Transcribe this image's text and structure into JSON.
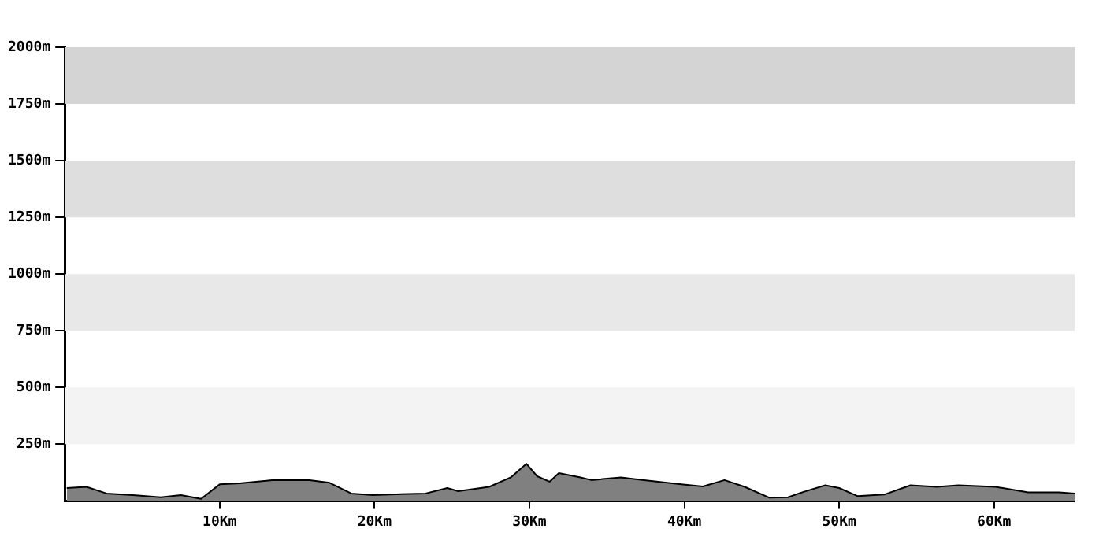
{
  "chart_data": {
    "type": "area",
    "x": [
      0.13,
      1.4,
      2.7,
      4.4,
      6.2,
      7.5,
      8.8,
      10.0,
      11.3,
      13.4,
      15.8,
      17.1,
      18.5,
      19.9,
      23.3,
      24.7,
      25.4,
      27.4,
      28.8,
      29.8,
      30.5,
      31.3,
      31.9,
      33.3,
      34.0,
      35.9,
      37.4,
      39.8,
      41.2,
      42.6,
      43.9,
      45.5,
      46.7,
      47.7,
      49.1,
      50.0,
      51.2,
      52.9,
      54.6,
      56.3,
      57.7,
      60.1,
      62.2,
      64.2,
      65.2
    ],
    "series": [
      {
        "color": "#808080",
        "values": [
          57,
          62,
          33,
          26,
          16,
          26,
          9,
          73,
          78,
          92,
          92,
          80,
          33,
          26,
          33,
          57,
          43,
          62,
          104,
          164,
          109,
          85,
          123,
          104,
          92,
          104,
          92,
          73,
          64,
          92,
          62,
          14,
          16,
          40,
          69,
          57,
          21,
          28,
          69,
          62,
          69,
          62,
          38,
          38,
          33
        ]
      }
    ],
    "xlim": [
      0,
      65.2
    ],
    "xticks": [
      {
        "value": 10,
        "label": "10Km"
      },
      {
        "value": 20,
        "label": "20Km"
      },
      {
        "value": 30,
        "label": "30Km"
      },
      {
        "value": 40,
        "label": "40Km"
      },
      {
        "value": 50,
        "label": "50Km"
      },
      {
        "value": 60,
        "label": "60Km"
      }
    ],
    "ylim": [
      0,
      2000
    ],
    "yticks": [
      {
        "value": 250,
        "label": "250m"
      },
      {
        "value": 500,
        "label": "500m"
      },
      {
        "value": 750,
        "label": "750m"
      },
      {
        "value": 1000,
        "label": "1000m"
      },
      {
        "value": 1250,
        "label": "1250m"
      },
      {
        "value": 1500,
        "label": "1500m"
      },
      {
        "value": 1750,
        "label": "1750m"
      },
      {
        "value": 2000,
        "label": "2000m"
      }
    ],
    "bands": [
      {
        "axis": "y",
        "from": 250,
        "to": 500,
        "color": "#f3f3f3"
      },
      {
        "axis": "y",
        "from": 750,
        "to": 1000,
        "color": "#e8e8e8"
      },
      {
        "axis": "y",
        "from": 1250,
        "to": 1500,
        "color": "#dedede"
      },
      {
        "axis": "y",
        "from": 1750,
        "to": 2000,
        "color": "#d4d4d4"
      }
    ],
    "grid": false,
    "legend": false
  }
}
